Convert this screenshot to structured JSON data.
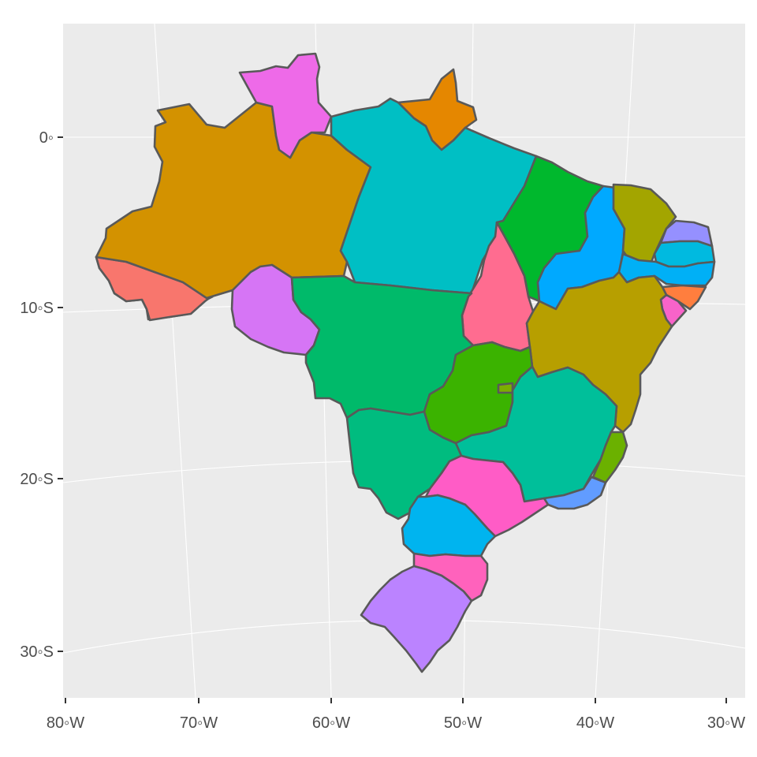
{
  "map": {
    "title": "",
    "ylabels": [
      "0◦",
      "10◦S",
      "20◦S",
      "30◦S"
    ],
    "xlabels": [
      "80◦W",
      "70◦W",
      "60◦W",
      "50◦W",
      "40◦W",
      "30◦W"
    ],
    "colors": {
      "panel": "#ebebeb",
      "border": "#595959",
      "gridline": "#ffffff"
    },
    "regions": [
      {
        "id": "AC",
        "fill": "#F8766D"
      },
      {
        "id": "AM",
        "fill": "#D39200"
      },
      {
        "id": "RR",
        "fill": "#EE6AE8"
      },
      {
        "id": "AP",
        "fill": "#E58700"
      },
      {
        "id": "PA",
        "fill": "#00BFC4"
      },
      {
        "id": "RO",
        "fill": "#D675F5"
      },
      {
        "id": "MT",
        "fill": "#00BA6A"
      },
      {
        "id": "TO",
        "fill": "#FF6C90"
      },
      {
        "id": "MA",
        "fill": "#00B82D"
      },
      {
        "id": "PI",
        "fill": "#00A9FF"
      },
      {
        "id": "CE",
        "fill": "#A3A500"
      },
      {
        "id": "RN",
        "fill": "#9590FF"
      },
      {
        "id": "PB",
        "fill": "#00BAE0"
      },
      {
        "id": "PE",
        "fill": "#00B0F6"
      },
      {
        "id": "AL",
        "fill": "#FF7E3E"
      },
      {
        "id": "SE",
        "fill": "#F863C9"
      },
      {
        "id": "BA",
        "fill": "#B79F00"
      },
      {
        "id": "GO",
        "fill": "#3BB300"
      },
      {
        "id": "DF",
        "fill": "#7CAE00"
      },
      {
        "id": "MG",
        "fill": "#00BF9A"
      },
      {
        "id": "ES",
        "fill": "#6BB100"
      },
      {
        "id": "RJ",
        "fill": "#619CFF"
      },
      {
        "id": "MS",
        "fill": "#00BC7F"
      },
      {
        "id": "SP",
        "fill": "#FF5CC6"
      },
      {
        "id": "PR",
        "fill": "#00B4EF"
      },
      {
        "id": "SC",
        "fill": "#FF62BC"
      },
      {
        "id": "RS",
        "fill": "#BB83FF"
      }
    ]
  }
}
